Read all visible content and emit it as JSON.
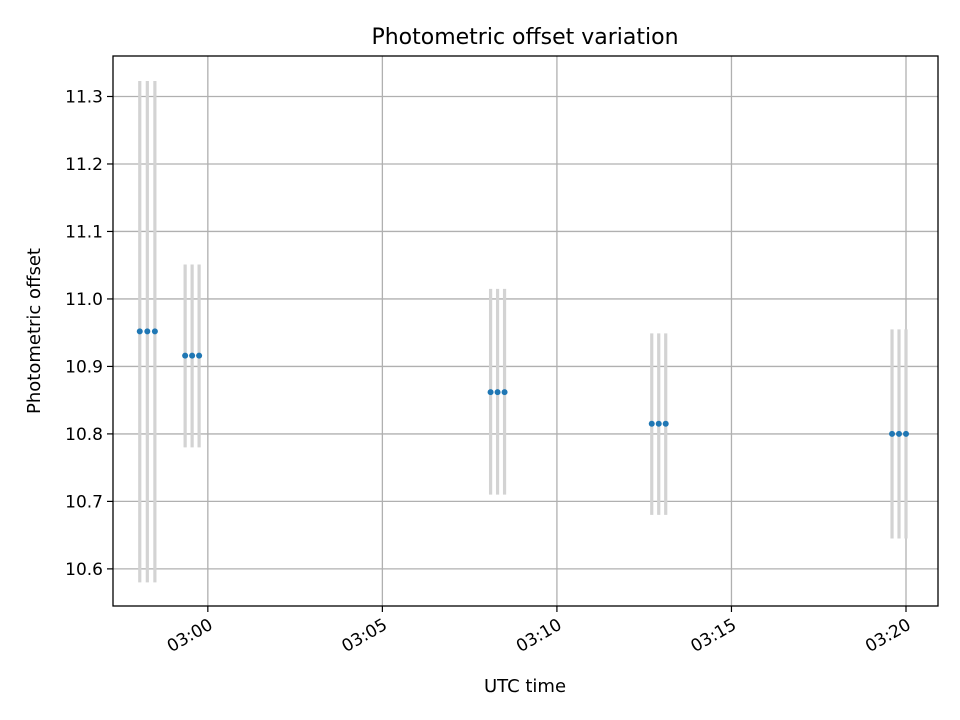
{
  "chart_data": {
    "type": "scatter",
    "title": "Photometric offset variation",
    "xlabel": "UTC time",
    "ylabel": "Photometric offset",
    "xlim": [
      "02:57:17",
      "03:20:55"
    ],
    "ylim": [
      10.545,
      11.36
    ],
    "x_ticks": [
      "03:00",
      "03:05",
      "03:10",
      "03:15",
      "03:20"
    ],
    "y_ticks": [
      "10.6",
      "10.7",
      "10.8",
      "10.9",
      "11.0",
      "11.1",
      "11.2",
      "11.3"
    ],
    "grid": true,
    "legend": "none",
    "colors": {
      "point": "#1f77b4",
      "errorbar": "#d3d3d3",
      "grid": "#b0b0b0"
    },
    "points": [
      {
        "x": "02:58:03",
        "y": 10.952,
        "yerr_low": 10.58,
        "yerr_high": 11.323
      },
      {
        "x": "02:58:16",
        "y": 10.952,
        "yerr_low": 10.58,
        "yerr_high": 11.323
      },
      {
        "x": "02:58:29",
        "y": 10.952,
        "yerr_low": 10.58,
        "yerr_high": 11.323
      },
      {
        "x": "02:59:21",
        "y": 10.916,
        "yerr_low": 10.78,
        "yerr_high": 11.051
      },
      {
        "x": "02:59:33",
        "y": 10.916,
        "yerr_low": 10.78,
        "yerr_high": 11.051
      },
      {
        "x": "02:59:45",
        "y": 10.916,
        "yerr_low": 10.78,
        "yerr_high": 11.051
      },
      {
        "x": "03:08:06",
        "y": 10.862,
        "yerr_low": 10.71,
        "yerr_high": 11.015
      },
      {
        "x": "03:08:18",
        "y": 10.862,
        "yerr_low": 10.71,
        "yerr_high": 11.015
      },
      {
        "x": "03:08:30",
        "y": 10.862,
        "yerr_low": 10.71,
        "yerr_high": 11.015
      },
      {
        "x": "03:12:43",
        "y": 10.815,
        "yerr_low": 10.68,
        "yerr_high": 10.949
      },
      {
        "x": "03:12:55",
        "y": 10.815,
        "yerr_low": 10.68,
        "yerr_high": 10.949
      },
      {
        "x": "03:13:07",
        "y": 10.815,
        "yerr_low": 10.68,
        "yerr_high": 10.949
      },
      {
        "x": "03:19:36",
        "y": 10.8,
        "yerr_low": 10.645,
        "yerr_high": 10.955
      },
      {
        "x": "03:19:48",
        "y": 10.8,
        "yerr_low": 10.645,
        "yerr_high": 10.955
      },
      {
        "x": "03:20:00",
        "y": 10.8,
        "yerr_low": 10.645,
        "yerr_high": 10.955
      }
    ]
  }
}
